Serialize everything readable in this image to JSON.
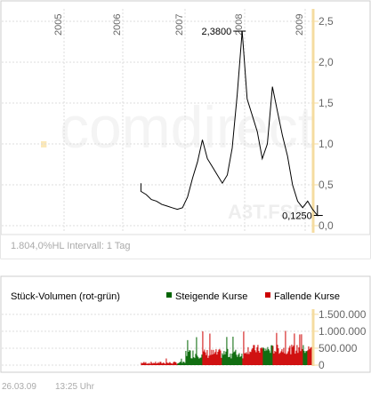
{
  "watermark": "comdirect",
  "symbol_watermark": "A3T.FSE",
  "info_line": "1.804,0%HL Intervall: 1 Tag",
  "footer": {
    "date": "26.03.09",
    "time": "13:25 Uhr"
  },
  "chart_data": [
    {
      "type": "line",
      "years": [
        "2005",
        "2006",
        "2007",
        "2008",
        "2009"
      ],
      "ylim": [
        0,
        2.5
      ],
      "yticks": [
        "0,0",
        "0,5",
        "1,0",
        "1,5",
        "2,0",
        "2,5"
      ],
      "annotations": {
        "high": "2,3800",
        "low": "0,1250"
      },
      "series": [
        {
          "points": [
            [
              "2006-04",
              0.52
            ],
            [
              "2006-04",
              0.42
            ],
            [
              "2006-05",
              0.38
            ],
            [
              "2006-06",
              0.32
            ],
            [
              "2006-07",
              0.3
            ],
            [
              "2006-08",
              0.26
            ],
            [
              "2006-09",
              0.24
            ],
            [
              "2006-10",
              0.22
            ],
            [
              "2006-11",
              0.2
            ],
            [
              "2006-12",
              0.22
            ],
            [
              "2007-01",
              0.35
            ],
            [
              "2007-02",
              0.58
            ],
            [
              "2007-03",
              0.78
            ],
            [
              "2007-04",
              1.05
            ],
            [
              "2007-05",
              0.82
            ],
            [
              "2007-06",
              0.72
            ],
            [
              "2007-07",
              0.62
            ],
            [
              "2007-08",
              0.52
            ],
            [
              "2007-09",
              0.62
            ],
            [
              "2007-10",
              0.95
            ],
            [
              "2007-11",
              1.6
            ],
            [
              "2007-12",
              2.38
            ],
            [
              "2008-01",
              1.55
            ],
            [
              "2008-02",
              1.35
            ],
            [
              "2008-03",
              1.15
            ],
            [
              "2008-04",
              0.82
            ],
            [
              "2008-05",
              1.0
            ],
            [
              "2008-06",
              1.7
            ],
            [
              "2008-07",
              1.4
            ],
            [
              "2008-08",
              1.1
            ],
            [
              "2008-09",
              0.85
            ],
            [
              "2008-10",
              0.5
            ],
            [
              "2008-11",
              0.3
            ],
            [
              "2008-12",
              0.22
            ],
            [
              "2009-01",
              0.3
            ],
            [
              "2009-02",
              0.2
            ],
            [
              "2009-03",
              0.125
            ],
            [
              "2009-03",
              0.25
            ]
          ]
        }
      ]
    },
    {
      "type": "bar",
      "title": "Stück-Volumen (rot-grün)",
      "legend": [
        {
          "name": "Steigende Kurse",
          "color": "#006400"
        },
        {
          "name": "Fallende Kurse",
          "color": "#cc0000"
        }
      ],
      "yticks": [
        "0",
        "500.000",
        "1.000.000",
        "1.500.000"
      ],
      "ylim": [
        0,
        1600000
      ]
    }
  ],
  "colors": {
    "line": "#000000",
    "axis_accent": "#f5dca0",
    "grid": "#dddddd",
    "tick_text": "#666666",
    "watermark": "#f4f4f4",
    "rising": "#006400",
    "falling": "#cc0000"
  }
}
